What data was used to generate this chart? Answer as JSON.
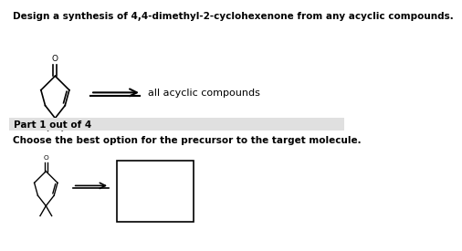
{
  "title_text": "Design a synthesis of 4,4-dimethyl-2-cyclohexenone from any acyclic compounds.",
  "part_label": "Part 1 out of 4",
  "choose_text": "Choose the best option for the precursor to the target molecule.",
  "acyclic_text": "all acyclic compounds",
  "bg_color": "#ffffff",
  "part_bg_color": "#e0e0e0",
  "molecule_color": "#000000",
  "title_fontsize": 7.5,
  "label_fontsize": 7.5,
  "body_fontsize": 8.0
}
